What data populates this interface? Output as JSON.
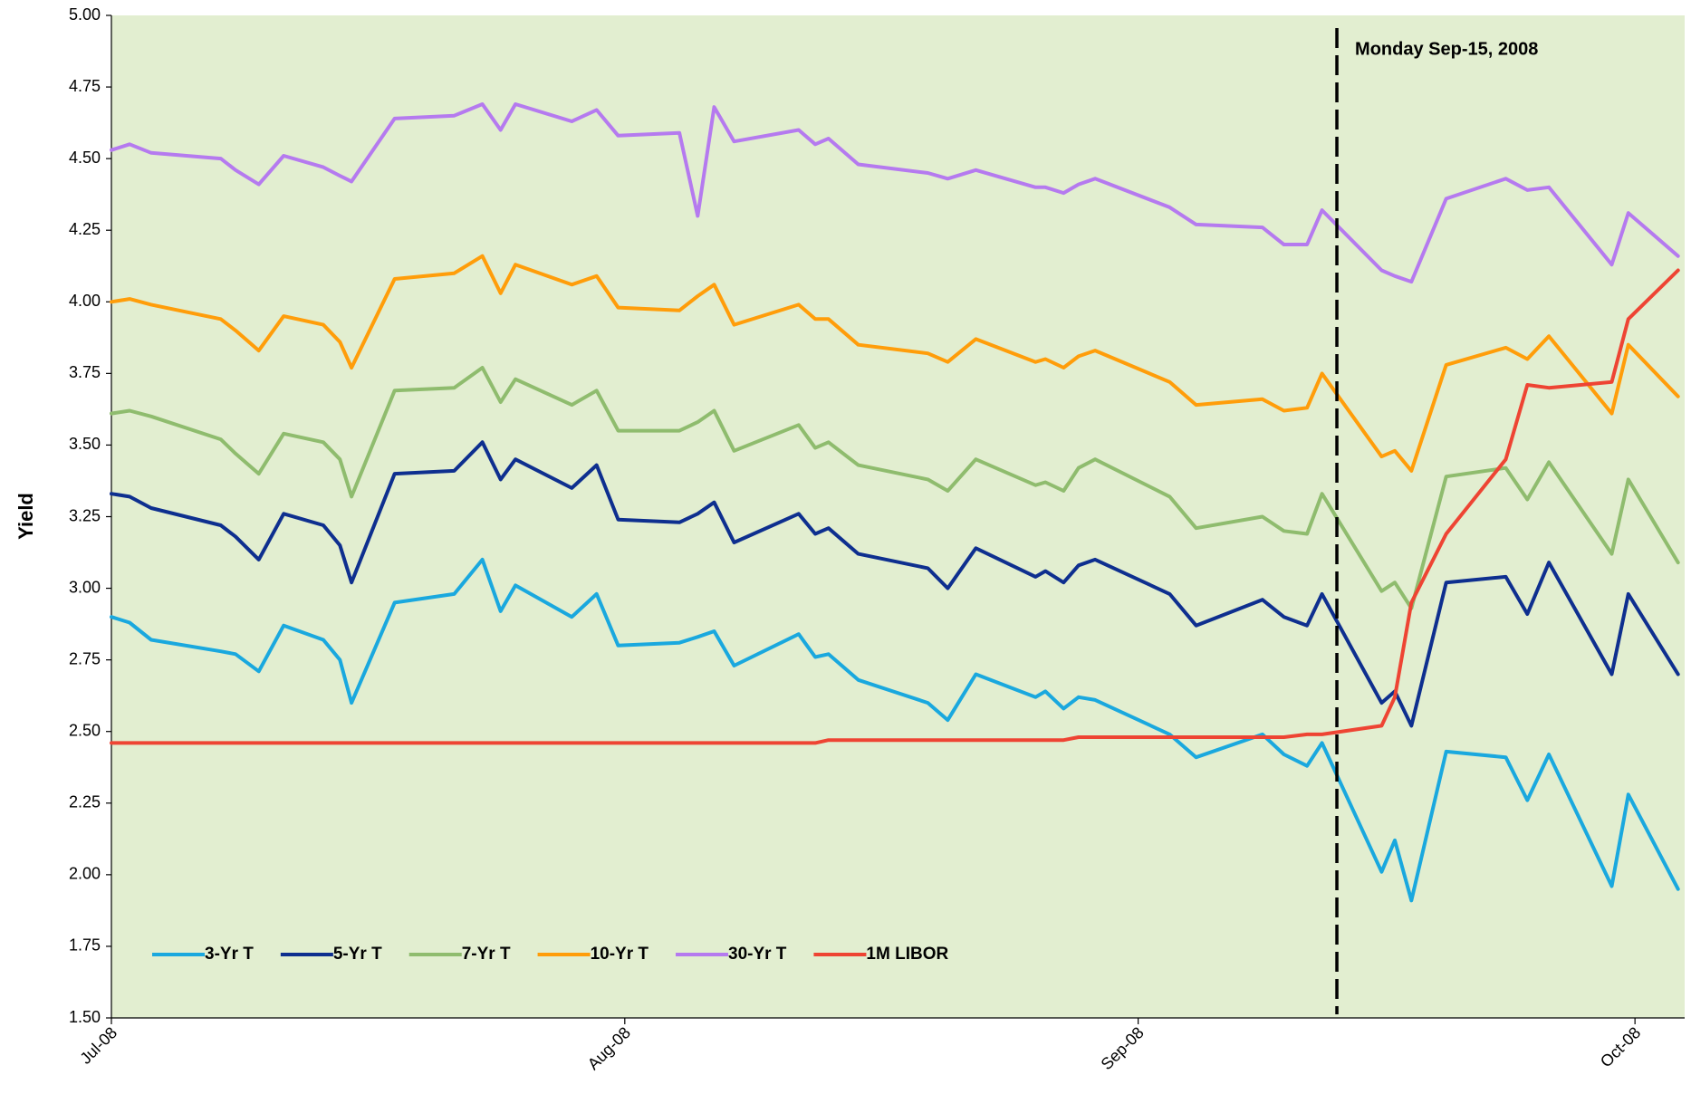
{
  "chart_data": {
    "type": "line",
    "y_label": "Yield",
    "x": [
      0,
      1.1,
      2.4,
      6.6,
      7.5,
      8.9,
      10.4,
      12.8,
      13.8,
      14.5,
      17.1,
      20.7,
      22.4,
      23.5,
      24.4,
      27.8,
      29.3,
      30.6,
      34.3,
      35.4,
      36.4,
      37.6,
      41.5,
      42.5,
      43.3,
      45.1,
      49.3,
      50.5,
      52.2,
      55.8,
      56.4,
      57.5,
      58.4,
      59.4,
      63.9,
      65.5,
      69.5,
      70.8,
      72.2,
      73.1,
      76.7,
      77.5,
      78.5,
      80.6,
      84.2,
      85.5,
      86.8,
      90.6,
      91.6,
      94.6
    ],
    "xlim": [
      0,
      95
    ],
    "xticks": [
      {
        "value": 0,
        "label": "Jul-08"
      },
      {
        "value": 31,
        "label": "Aug-08"
      },
      {
        "value": 62,
        "label": "Sep-08"
      },
      {
        "value": 92,
        "label": "Oct-08"
      }
    ],
    "ylim": [
      1.5,
      5
    ],
    "yticks": [
      {
        "value": 1.5,
        "label": "1.50"
      },
      {
        "value": 1.75,
        "label": "1.75"
      },
      {
        "value": 2,
        "label": "2.00"
      },
      {
        "value": 2.25,
        "label": "2.25"
      },
      {
        "value": 2.5,
        "label": "2.50"
      },
      {
        "value": 2.75,
        "label": "2.75"
      },
      {
        "value": 3,
        "label": "3.00"
      },
      {
        "value": 3.25,
        "label": "3.25"
      },
      {
        "value": 3.5,
        "label": "3.50"
      },
      {
        "value": 3.75,
        "label": "3.75"
      },
      {
        "value": 4,
        "label": "4.00"
      },
      {
        "value": 4.25,
        "label": "4.25"
      },
      {
        "value": 4.5,
        "label": "4.50"
      },
      {
        "value": 4.75,
        "label": "4.75"
      },
      {
        "value": 5,
        "label": "5.00"
      }
    ],
    "grid": false,
    "background": "#e2eed0",
    "legend": "bottom-left",
    "annotations": [
      {
        "x": 74,
        "text": "Monday Sep-15, 2008"
      }
    ],
    "series": [
      {
        "name": "3-Yr T",
        "color": "#1aa8de",
        "values": [
          2.9,
          2.88,
          2.82,
          2.78,
          2.77,
          2.71,
          2.87,
          2.82,
          2.75,
          2.6,
          2.95,
          2.98,
          3.1,
          2.92,
          3.01,
          2.9,
          2.98,
          2.8,
          2.81,
          2.83,
          2.85,
          2.73,
          2.84,
          2.76,
          2.77,
          2.68,
          2.6,
          2.54,
          2.7,
          2.62,
          2.64,
          2.58,
          2.62,
          2.61,
          2.49,
          2.41,
          2.49,
          2.42,
          2.38,
          2.46,
          2.01,
          2.12,
          1.91,
          2.43,
          2.41,
          2.26,
          2.42,
          1.96,
          2.28,
          1.95
        ]
      },
      {
        "name": "5-Yr T",
        "color": "#0e2f8f",
        "values": [
          3.33,
          3.32,
          3.28,
          3.22,
          3.18,
          3.1,
          3.26,
          3.22,
          3.15,
          3.02,
          3.4,
          3.41,
          3.51,
          3.38,
          3.45,
          3.35,
          3.43,
          3.24,
          3.23,
          3.26,
          3.3,
          3.16,
          3.26,
          3.19,
          3.21,
          3.12,
          3.07,
          3.0,
          3.14,
          3.04,
          3.06,
          3.02,
          3.08,
          3.1,
          2.98,
          2.87,
          2.96,
          2.9,
          2.87,
          2.98,
          2.6,
          2.64,
          2.52,
          3.02,
          3.04,
          2.91,
          3.09,
          2.7,
          2.98,
          2.7
        ]
      },
      {
        "name": "7-Yr T",
        "color": "#8fbc6e",
        "values": [
          3.61,
          3.62,
          3.6,
          3.52,
          3.47,
          3.4,
          3.54,
          3.51,
          3.45,
          3.32,
          3.69,
          3.7,
          3.77,
          3.65,
          3.73,
          3.64,
          3.69,
          3.55,
          3.55,
          3.58,
          3.62,
          3.48,
          3.57,
          3.49,
          3.51,
          3.43,
          3.38,
          3.34,
          3.45,
          3.36,
          3.37,
          3.34,
          3.42,
          3.45,
          3.32,
          3.21,
          3.25,
          3.2,
          3.19,
          3.33,
          2.99,
          3.02,
          2.93,
          3.39,
          3.42,
          3.31,
          3.44,
          3.12,
          3.38,
          3.09
        ]
      },
      {
        "name": "10-Yr T",
        "color": "#ff9d0a",
        "values": [
          4.0,
          4.01,
          3.99,
          3.94,
          3.9,
          3.83,
          3.95,
          3.92,
          3.86,
          3.77,
          4.08,
          4.1,
          4.16,
          4.03,
          4.13,
          4.06,
          4.09,
          3.98,
          3.97,
          4.02,
          4.06,
          3.92,
          3.99,
          3.94,
          3.94,
          3.85,
          3.82,
          3.79,
          3.87,
          3.79,
          3.8,
          3.77,
          3.81,
          3.83,
          3.72,
          3.64,
          3.66,
          3.62,
          3.63,
          3.75,
          3.46,
          3.48,
          3.41,
          3.78,
          3.84,
          3.8,
          3.88,
          3.61,
          3.85,
          3.67
        ]
      },
      {
        "name": "30-Yr T",
        "color": "#b57aef",
        "values": [
          4.53,
          4.55,
          4.52,
          4.5,
          4.46,
          4.41,
          4.51,
          4.47,
          4.44,
          4.42,
          4.64,
          4.65,
          4.69,
          4.6,
          4.69,
          4.63,
          4.67,
          4.58,
          4.59,
          4.3,
          4.68,
          4.56,
          4.6,
          4.55,
          4.57,
          4.48,
          4.45,
          4.43,
          4.46,
          4.4,
          4.4,
          4.38,
          4.41,
          4.43,
          4.33,
          4.27,
          4.26,
          4.2,
          4.2,
          4.32,
          4.11,
          4.09,
          4.07,
          4.36,
          4.43,
          4.39,
          4.4,
          4.13,
          4.31,
          4.16
        ]
      },
      {
        "name": "1M LIBOR",
        "color": "#ee4433",
        "values": [
          2.46,
          2.46,
          2.46,
          2.46,
          2.46,
          2.46,
          2.46,
          2.46,
          2.46,
          2.46,
          2.46,
          2.46,
          2.46,
          2.46,
          2.46,
          2.46,
          2.46,
          2.46,
          2.46,
          2.46,
          2.46,
          2.46,
          2.46,
          2.46,
          2.47,
          2.47,
          2.47,
          2.47,
          2.47,
          2.47,
          2.47,
          2.47,
          2.48,
          2.48,
          2.48,
          2.48,
          2.48,
          2.48,
          2.49,
          2.49,
          2.52,
          2.62,
          2.95,
          3.19,
          3.45,
          3.71,
          3.7,
          3.72,
          3.94,
          4.11
        ]
      }
    ]
  }
}
